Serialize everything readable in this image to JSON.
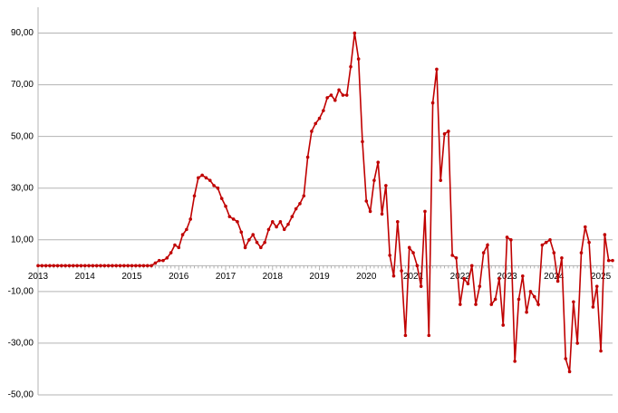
{
  "chart_data": {
    "type": "line",
    "color": "#c00000",
    "grid": true,
    "ylim": [
      -50,
      100
    ],
    "yticks": [
      {
        "value": -50,
        "label": "-50,00"
      },
      {
        "value": -30,
        "label": "-30,00"
      },
      {
        "value": -10,
        "label": "-10,00"
      },
      {
        "value": 10,
        "label": "10,00"
      },
      {
        "value": 30,
        "label": "30,00"
      },
      {
        "value": 50,
        "label": "50,00"
      },
      {
        "value": 70,
        "label": "70,00"
      },
      {
        "value": 90,
        "label": "90,00"
      }
    ],
    "categories": [
      "2013",
      null,
      null,
      null,
      null,
      null,
      null,
      null,
      null,
      null,
      null,
      null,
      "2014",
      null,
      null,
      null,
      null,
      null,
      null,
      null,
      null,
      null,
      null,
      null,
      "2015",
      null,
      null,
      null,
      null,
      null,
      null,
      null,
      null,
      null,
      null,
      null,
      "2016",
      null,
      null,
      null,
      null,
      null,
      null,
      null,
      null,
      null,
      null,
      null,
      "2017",
      null,
      null,
      null,
      null,
      null,
      null,
      null,
      null,
      null,
      null,
      null,
      "2018",
      null,
      null,
      null,
      null,
      null,
      null,
      null,
      null,
      null,
      null,
      null,
      "2019",
      null,
      null,
      null,
      null,
      null,
      null,
      null,
      null,
      null,
      null,
      null,
      "2020",
      null,
      null,
      null,
      null,
      null,
      null,
      null,
      null,
      null,
      null,
      null,
      "2021",
      null,
      null,
      null,
      null,
      null,
      null,
      null,
      null,
      null,
      null,
      null,
      "2022",
      null,
      null,
      null,
      null,
      null,
      null,
      null,
      null,
      null,
      null,
      null,
      "2023",
      null,
      null,
      null,
      null,
      null,
      null,
      null,
      null,
      null,
      null,
      null,
      "2024",
      null,
      null,
      null,
      null,
      null,
      null,
      null,
      null,
      null,
      null,
      null,
      "2025",
      null,
      null,
      null
    ],
    "values": [
      0,
      0,
      0,
      0,
      0,
      0,
      0,
      0,
      0,
      0,
      0,
      0,
      0,
      0,
      0,
      0,
      0,
      0,
      0,
      0,
      0,
      0,
      0,
      0,
      0,
      0,
      0,
      0,
      0,
      0,
      1,
      2,
      2,
      3,
      5,
      8,
      7,
      12,
      14,
      18,
      27,
      34,
      35,
      34,
      33,
      31,
      30,
      26,
      23,
      19,
      18,
      17,
      13,
      7,
      10,
      12,
      9,
      7,
      9,
      14,
      17,
      15,
      17,
      14,
      16,
      19,
      22,
      24,
      27,
      42,
      52,
      55,
      57,
      60,
      65,
      66,
      64,
      68,
      66,
      66,
      77,
      90,
      80,
      48,
      25,
      21,
      33,
      40,
      20,
      31,
      4,
      -4,
      17,
      -2,
      -27,
      7,
      5,
      0,
      -8,
      21,
      -27,
      63,
      76,
      33,
      51,
      52,
      4,
      3,
      -15,
      -5,
      -7,
      0,
      -15,
      -8,
      5,
      8,
      -15,
      -13,
      -5,
      -23,
      11,
      10,
      -37,
      -13,
      -4,
      -18,
      -10,
      -12,
      -15,
      8,
      9,
      10,
      5,
      -6,
      3,
      -36,
      -41,
      -14,
      -30,
      5,
      15,
      9,
      -16,
      -8,
      -33,
      12,
      2,
      2
    ]
  }
}
